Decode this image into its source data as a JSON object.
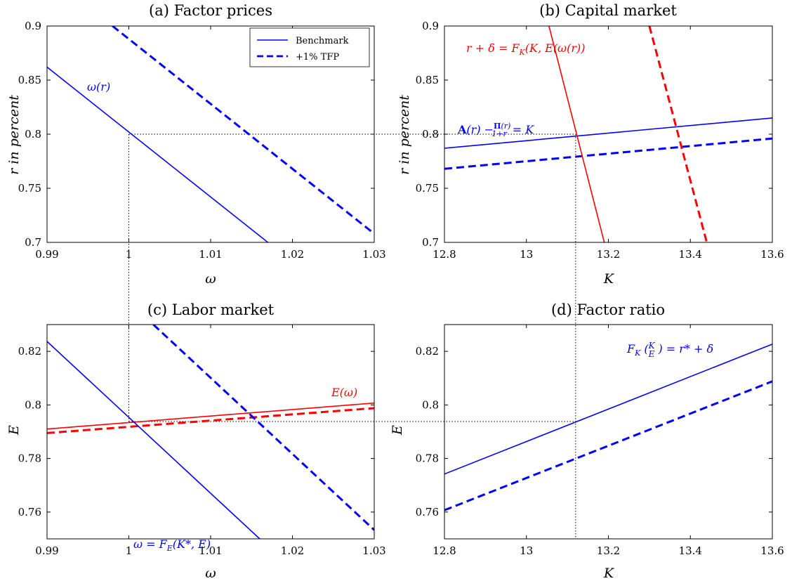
{
  "colors": {
    "blue": "#0000ff",
    "red": "#ff0000",
    "refline": "#000000"
  },
  "legend": {
    "placement": "top-right of panel (a)",
    "entries": [
      {
        "label": "Benchmark",
        "style": "solid",
        "color": "#0000ff"
      },
      {
        "label": "+1% TFP",
        "style": "dashed",
        "color": "#0000ff"
      }
    ]
  },
  "chart_data": [
    {
      "type": "line",
      "title": "(a) Factor prices",
      "xlabel": "ω",
      "ylabel": "r in percent",
      "xlim": [
        0.99,
        1.03
      ],
      "ylim": [
        0.7,
        0.9
      ],
      "xticks": [
        0.99,
        1,
        1.01,
        1.02,
        1.03
      ],
      "xticklabels": [
        "0.99",
        "1",
        "1.01",
        "1.02",
        "1.03"
      ],
      "yticks": [
        0.7,
        0.75,
        0.8,
        0.85,
        0.9
      ],
      "yticklabels": [
        "0.7",
        "0.75",
        "0.8",
        "0.85",
        "0.9"
      ],
      "series": [
        {
          "name": "Benchmark",
          "color": "#0000ff",
          "dash": "solid",
          "x": [
            0.99,
            1.017
          ],
          "y": [
            0.862,
            0.7
          ]
        },
        {
          "name": "+1% TFP",
          "color": "#0000ff",
          "dash": "dashed",
          "x": [
            0.998,
            1.03
          ],
          "y": [
            0.9,
            0.708
          ]
        }
      ],
      "annotations": [
        {
          "text": "ω(r)",
          "color": "#0000ff",
          "x": 0.9935,
          "y": 0.832
        }
      ]
    },
    {
      "type": "line",
      "title": "(b) Capital market",
      "xlabel": "K",
      "ylabel": "r in percent",
      "xlim": [
        12.8,
        13.6
      ],
      "ylim": [
        0.7,
        0.9
      ],
      "xticks": [
        12.8,
        13,
        13.2,
        13.4,
        13.6
      ],
      "xticklabels": [
        "12.8",
        "13",
        "13.2",
        "13.4",
        "13.6"
      ],
      "yticks": [
        0.7,
        0.75,
        0.8,
        0.85,
        0.9
      ],
      "yticklabels": [
        "0.7",
        "0.75",
        "0.8",
        "0.85",
        "0.9"
      ],
      "series": [
        {
          "color": "#0000ff",
          "dash": "solid",
          "x": [
            12.8,
            13.6
          ],
          "y": [
            0.787,
            0.815
          ]
        },
        {
          "color": "#0000ff",
          "dash": "dashed",
          "x": [
            12.8,
            13.6
          ],
          "y": [
            0.768,
            0.796
          ]
        },
        {
          "color": "#ff0000",
          "dash": "solid",
          "x": [
            13.055,
            13.19
          ],
          "y": [
            0.9,
            0.7
          ]
        },
        {
          "color": "#ff0000",
          "dash": "dashed",
          "x": [
            13.3,
            13.44
          ],
          "y": [
            0.9,
            0.7
          ]
        }
      ],
      "annotations": [
        {
          "text": "r + δ = F_K(K, E(ω(r))",
          "color": "#ff0000",
          "x": 12.925,
          "y": 0.879
        },
        {
          "text": "A(r) − Π(r)/(1+r) = K",
          "color": "#0000ff",
          "x": 12.885,
          "y": 0.801
        }
      ]
    },
    {
      "type": "line",
      "title": "(c) Labor market",
      "xlabel": "ω",
      "ylabel": "E",
      "xlim": [
        0.99,
        1.03
      ],
      "ylim": [
        0.75,
        0.83
      ],
      "xticks": [
        0.99,
        1,
        1.01,
        1.02,
        1.03
      ],
      "xticklabels": [
        "0.99",
        "1",
        "1.01",
        "1.02",
        "1.03"
      ],
      "yticks": [
        0.76,
        0.78,
        0.8,
        0.82
      ],
      "yticklabels": [
        "0.76",
        "0.78",
        "0.8",
        "0.82"
      ],
      "series": [
        {
          "color": "#ff0000",
          "dash": "solid",
          "x": [
            0.99,
            1.03
          ],
          "y": [
            0.791,
            0.8007
          ]
        },
        {
          "color": "#ff0000",
          "dash": "dashed",
          "x": [
            0.99,
            1.03
          ],
          "y": [
            0.7895,
            0.7988
          ]
        },
        {
          "color": "#0000ff",
          "dash": "solid",
          "x": [
            0.99,
            1.016
          ],
          "y": [
            0.8237,
            0.75
          ]
        },
        {
          "color": "#0000ff",
          "dash": "dashed",
          "x": [
            1.003,
            1.03
          ],
          "y": [
            0.83,
            0.7533
          ]
        }
      ],
      "annotations": [
        {
          "text": "E(ω)",
          "color": "#ff0000",
          "x": 1.0245,
          "y": 0.8035
        },
        {
          "text": "ω = F_E(K*, E)",
          "color": "#0000ff",
          "x": 1.0,
          "y": 0.7515
        }
      ]
    },
    {
      "type": "line",
      "title": "(d) Factor ratio",
      "xlabel": "K",
      "ylabel": "E",
      "xlim": [
        12.8,
        13.6
      ],
      "ylim": [
        0.75,
        0.83
      ],
      "xticks": [
        12.8,
        13,
        13.2,
        13.4,
        13.6
      ],
      "xticklabels": [
        "12.8",
        "13",
        "13.2",
        "13.4",
        "13.6"
      ],
      "yticks": [
        0.76,
        0.78,
        0.8,
        0.82
      ],
      "yticklabels": [
        "0.76",
        "0.78",
        "0.8",
        "0.82"
      ],
      "series": [
        {
          "color": "#0000ff",
          "dash": "solid",
          "x": [
            12.8,
            13.6
          ],
          "y": [
            0.7742,
            0.8227
          ]
        },
        {
          "color": "#0000ff",
          "dash": "dashed",
          "x": [
            12.8,
            13.6
          ],
          "y": [
            0.7607,
            0.8088
          ]
        }
      ],
      "annotations": [
        {
          "text": "F_K(K/E) = r* + δ",
          "color": "#0000ff",
          "x": 13.255,
          "y": 0.8195
        }
      ]
    }
  ],
  "reference_lines": {
    "omega_star": 1.0,
    "r_star": 0.8,
    "K_star": 13.12,
    "E_star": 0.7938
  }
}
